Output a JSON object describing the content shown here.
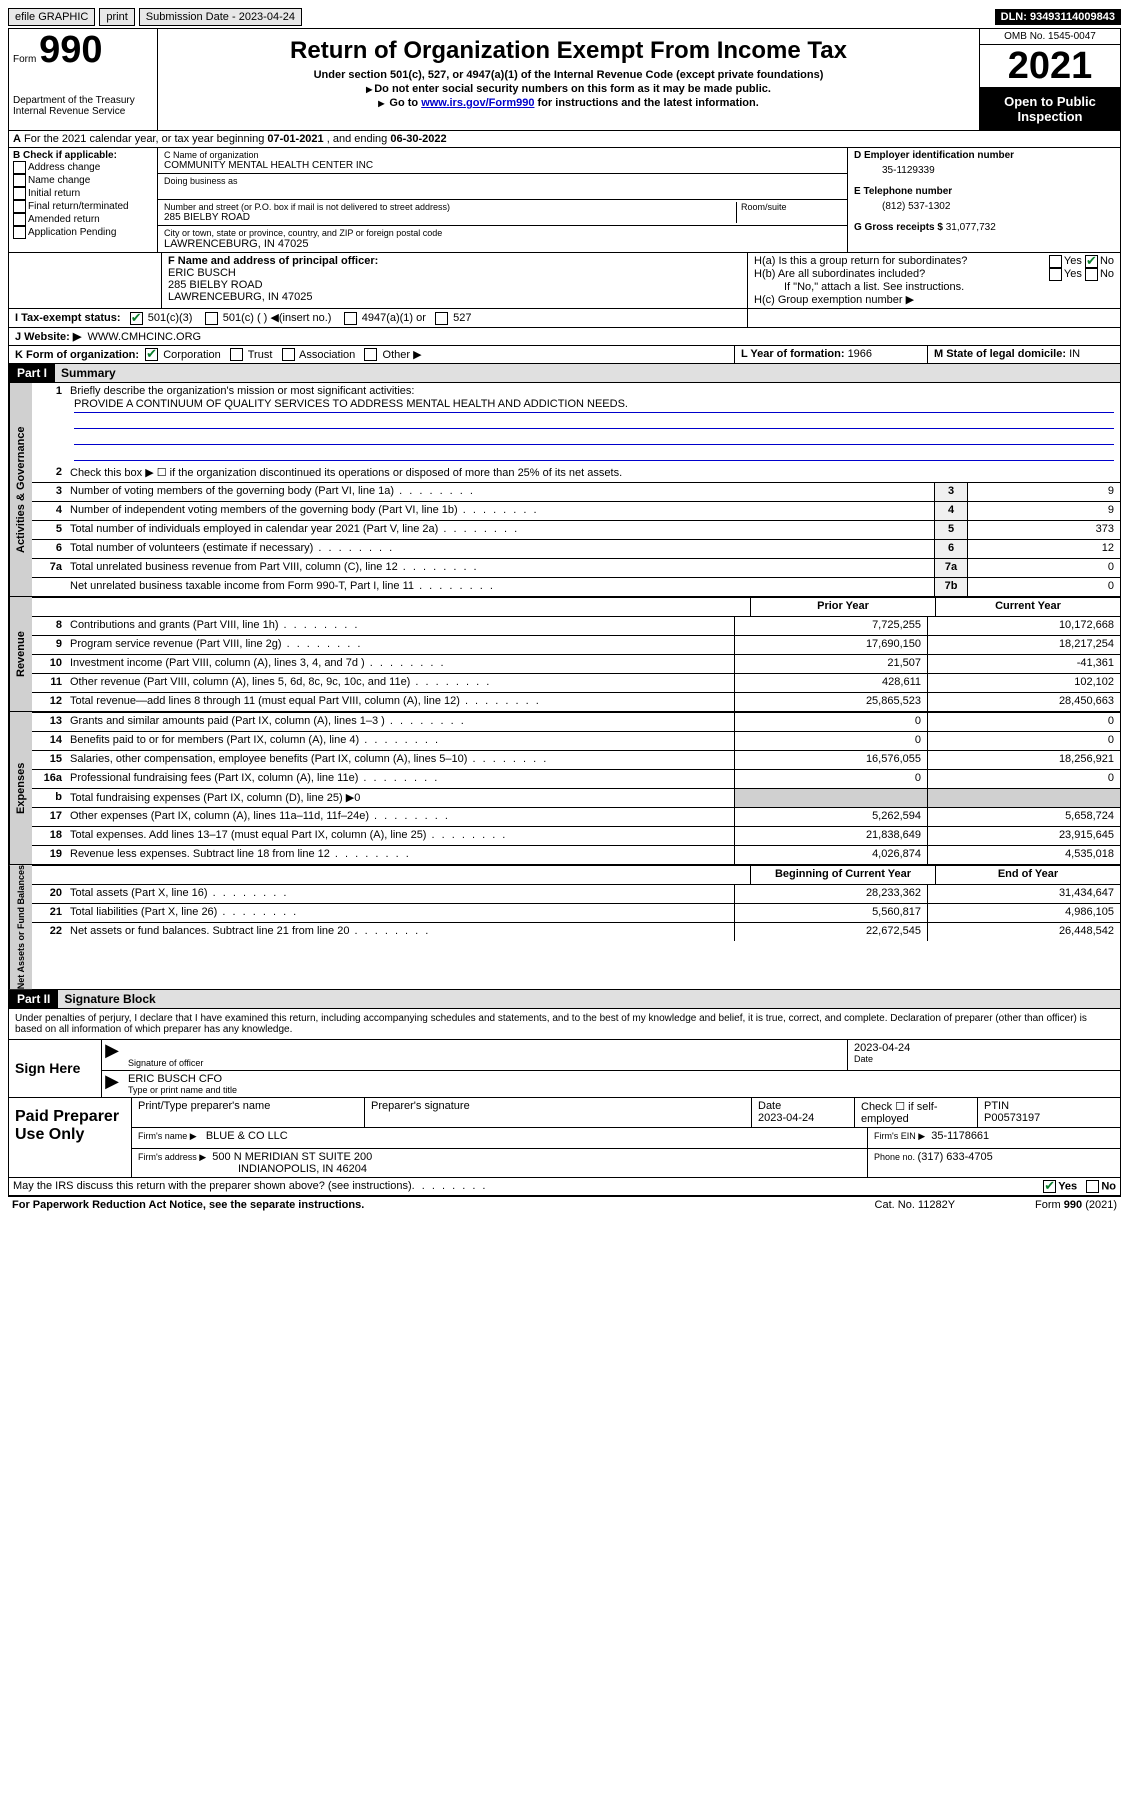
{
  "topbar": {
    "efile": "efile GRAPHIC",
    "print": "print",
    "submission_label": "Submission Date - ",
    "submission_date": "2023-04-24",
    "dln_label": "DLN: ",
    "dln": "93493114009843"
  },
  "header": {
    "form_prefix": "Form",
    "form_number": "990",
    "dept": "Department of the Treasury",
    "irs": "Internal Revenue Service",
    "title": "Return of Organization Exempt From Income Tax",
    "sub1": "Under section 501(c), 527, or 4947(a)(1) of the Internal Revenue Code (except private foundations)",
    "sub2": "Do not enter social security numbers on this form as it may be made public.",
    "sub3_prefix": "Go to ",
    "sub3_link": "www.irs.gov/Form990",
    "sub3_suffix": " for instructions and the latest information.",
    "omb": "OMB No. 1545-0047",
    "year": "2021",
    "inspection": "Open to Public Inspection"
  },
  "period": {
    "text_a": "For the 2021 calendar year, or tax year beginning ",
    "begin": "07-01-2021",
    "text_b": " , and ending ",
    "end": "06-30-2022"
  },
  "section_b": {
    "label": "B Check if applicable:",
    "opts": [
      "Address change",
      "Name change",
      "Initial return",
      "Final return/terminated",
      "Amended return",
      "Application Pending"
    ]
  },
  "section_c": {
    "name_label": "C Name of organization",
    "name": "COMMUNITY MENTAL HEALTH CENTER INC",
    "dba_label": "Doing business as",
    "street_label": "Number and street (or P.O. box if mail is not delivered to street address)",
    "room_label": "Room/suite",
    "street": "285 BIELBY ROAD",
    "city_label": "City or town, state or province, country, and ZIP or foreign postal code",
    "city": "LAWRENCEBURG, IN  47025"
  },
  "section_d": {
    "label": "D Employer identification number",
    "ein": "35-1129339"
  },
  "section_e": {
    "label": "E Telephone number",
    "phone": "(812) 537-1302"
  },
  "section_g": {
    "label": "G Gross receipts $ ",
    "amount": "31,077,732"
  },
  "section_f": {
    "label": "F Name and address of principal officer:",
    "name": "ERIC BUSCH",
    "addr1": "285 BIELBY ROAD",
    "addr2": "LAWRENCEBURG, IN  47025"
  },
  "section_h": {
    "ha": "H(a)  Is this a group return for subordinates?",
    "hb": "H(b)  Are all subordinates included?",
    "hb_note": "If \"No,\" attach a list. See instructions.",
    "hc": "H(c)  Group exemption number ▶",
    "yes": "Yes",
    "no": "No"
  },
  "section_i": {
    "label": "I   Tax-exempt status:",
    "o1": "501(c)(3)",
    "o2": "501(c) (  ) ◀(insert no.)",
    "o3": "4947(a)(1) or",
    "o4": "527"
  },
  "section_j": {
    "label": "J   Website: ▶",
    "url": "WWW.CMHCINC.ORG"
  },
  "section_k": {
    "label": "K Form of organization:",
    "o1": "Corporation",
    "o2": "Trust",
    "o3": "Association",
    "o4": "Other ▶"
  },
  "section_l": {
    "label": "L Year of formation: ",
    "year": "1966"
  },
  "section_m": {
    "label": "M State of legal domicile: ",
    "state": "IN"
  },
  "part1": {
    "tag": "Part I",
    "title": "Summary",
    "line1_label": "Briefly describe the organization's mission or most significant activities:",
    "mission": "PROVIDE A CONTINUUM OF QUALITY SERVICES TO ADDRESS MENTAL HEALTH AND ADDICTION NEEDS.",
    "line2": "Check this box ▶ ☐  if the organization discontinued its operations or disposed of more than 25% of its net assets.",
    "lines_gov": [
      {
        "n": "3",
        "d": "Number of voting members of the governing body (Part VI, line 1a)",
        "box": "3",
        "v": "9"
      },
      {
        "n": "4",
        "d": "Number of independent voting members of the governing body (Part VI, line 1b)",
        "box": "4",
        "v": "9"
      },
      {
        "n": "5",
        "d": "Total number of individuals employed in calendar year 2021 (Part V, line 2a)",
        "box": "5",
        "v": "373"
      },
      {
        "n": "6",
        "d": "Total number of volunteers (estimate if necessary)",
        "box": "6",
        "v": "12"
      },
      {
        "n": "7a",
        "d": "Total unrelated business revenue from Part VIII, column (C), line 12",
        "box": "7a",
        "v": "0"
      },
      {
        "n": "",
        "d": "Net unrelated business taxable income from Form 990-T, Part I, line 11",
        "box": "7b",
        "v": "0"
      }
    ],
    "col_prior": "Prior Year",
    "col_current": "Current Year",
    "lines_rev": [
      {
        "n": "8",
        "d": "Contributions and grants (Part VIII, line 1h)",
        "p": "7,725,255",
        "c": "10,172,668"
      },
      {
        "n": "9",
        "d": "Program service revenue (Part VIII, line 2g)",
        "p": "17,690,150",
        "c": "18,217,254"
      },
      {
        "n": "10",
        "d": "Investment income (Part VIII, column (A), lines 3, 4, and 7d )",
        "p": "21,507",
        "c": "-41,361"
      },
      {
        "n": "11",
        "d": "Other revenue (Part VIII, column (A), lines 5, 6d, 8c, 9c, 10c, and 11e)",
        "p": "428,611",
        "c": "102,102"
      },
      {
        "n": "12",
        "d": "Total revenue—add lines 8 through 11 (must equal Part VIII, column (A), line 12)",
        "p": "25,865,523",
        "c": "28,450,663"
      }
    ],
    "lines_exp": [
      {
        "n": "13",
        "d": "Grants and similar amounts paid (Part IX, column (A), lines 1–3 )",
        "p": "0",
        "c": "0"
      },
      {
        "n": "14",
        "d": "Benefits paid to or for members (Part IX, column (A), line 4)",
        "p": "0",
        "c": "0"
      },
      {
        "n": "15",
        "d": "Salaries, other compensation, employee benefits (Part IX, column (A), lines 5–10)",
        "p": "16,576,055",
        "c": "18,256,921"
      },
      {
        "n": "16a",
        "d": "Professional fundraising fees (Part IX, column (A), line 11e)",
        "p": "0",
        "c": "0"
      },
      {
        "n": "b",
        "d": "Total fundraising expenses (Part IX, column (D), line 25) ▶0",
        "p": "",
        "c": "",
        "shade": true
      },
      {
        "n": "17",
        "d": "Other expenses (Part IX, column (A), lines 11a–11d, 11f–24e)",
        "p": "5,262,594",
        "c": "5,658,724"
      },
      {
        "n": "18",
        "d": "Total expenses. Add lines 13–17 (must equal Part IX, column (A), line 25)",
        "p": "21,838,649",
        "c": "23,915,645"
      },
      {
        "n": "19",
        "d": "Revenue less expenses. Subtract line 18 from line 12",
        "p": "4,026,874",
        "c": "4,535,018"
      }
    ],
    "col_begin": "Beginning of Current Year",
    "col_end": "End of Year",
    "lines_net": [
      {
        "n": "20",
        "d": "Total assets (Part X, line 16)",
        "p": "28,233,362",
        "c": "31,434,647"
      },
      {
        "n": "21",
        "d": "Total liabilities (Part X, line 26)",
        "p": "5,560,817",
        "c": "4,986,105"
      },
      {
        "n": "22",
        "d": "Net assets or fund balances. Subtract line 21 from line 20",
        "p": "22,672,545",
        "c": "26,448,542"
      }
    ],
    "vtab_gov": "Activities & Governance",
    "vtab_rev": "Revenue",
    "vtab_exp": "Expenses",
    "vtab_net": "Net Assets or Fund Balances"
  },
  "part2": {
    "tag": "Part II",
    "title": "Signature Block",
    "decl": "Under penalties of perjury, I declare that I have examined this return, including accompanying schedules and statements, and to the best of my knowledge and belief, it is true, correct, and complete. Declaration of preparer (other than officer) is based on all information of which preparer has any knowledge.",
    "sign_here": "Sign Here",
    "sig_off": "Signature of officer",
    "sig_date_label": "Date",
    "sig_date": "2023-04-24",
    "sig_name": "ERIC BUSCH  CFO",
    "sig_name_label": "Type or print name and title",
    "paid": "Paid Preparer Use Only",
    "prep_name_label": "Print/Type preparer's name",
    "prep_sig_label": "Preparer's signature",
    "prep_date_label": "Date",
    "prep_date": "2023-04-24",
    "prep_self": "Check ☐ if self-employed",
    "prep_ptin_label": "PTIN",
    "prep_ptin": "P00573197",
    "firm_name_label": "Firm's name     ▶",
    "firm_name": "BLUE & CO LLC",
    "firm_ein_label": "Firm's EIN ▶",
    "firm_ein": "35-1178661",
    "firm_addr_label": "Firm's address ▶",
    "firm_addr1": "500 N MERIDIAN ST SUITE 200",
    "firm_addr2": "INDIANOPOLIS, IN  46204",
    "firm_phone_label": "Phone no. ",
    "firm_phone": "(317) 633-4705",
    "discuss": "May the IRS discuss this return with the preparer shown above? (see instructions)",
    "yes": "Yes",
    "no": "No"
  },
  "footer": {
    "paperwork": "For Paperwork Reduction Act Notice, see the separate instructions.",
    "cat": "Cat. No. 11282Y",
    "form": "Form 990 (2021)"
  }
}
